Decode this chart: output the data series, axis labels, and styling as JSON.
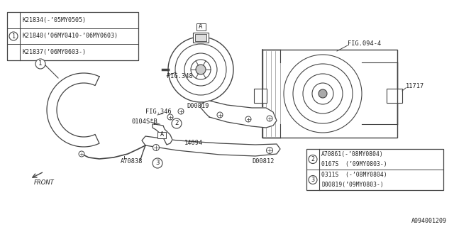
{
  "bg_color": "#ffffff",
  "fig_code": "A094001209",
  "lc": "#444444",
  "tc": "#222222",
  "top_left_table": {
    "rows": [
      "K21834(-’05MY0505)",
      "K21840(’06MY0410-’06MY0603)",
      "K21837(’06MY0603-)"
    ]
  },
  "bottom_right_table": {
    "rows_top": [
      "A70861(-’08MY0804)",
      "0167S  (’09MY0803-)"
    ],
    "rows_bot": [
      "0311S  (-’08MY0804)",
      "D00819(’09MY0803-)"
    ]
  },
  "labels": {
    "FIG094_4": "FIG.094-4",
    "FIG348": "FIG.348",
    "FIG346": "FIG.346",
    "D00819": "D00819",
    "D00812": "D00812",
    "11717": "11717",
    "0104S_B": "0104S*B",
    "14094": "14094",
    "A70838": "A70838",
    "FRONT": "FRONT",
    "A_top": "A",
    "A_bot": "A"
  }
}
